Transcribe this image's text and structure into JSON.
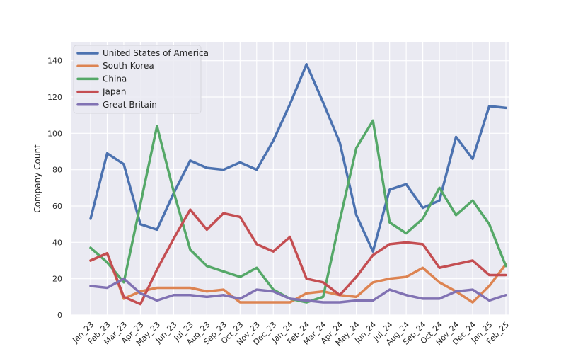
{
  "chart_data": {
    "type": "line",
    "title": "",
    "xlabel": "",
    "ylabel": "Company Count",
    "ylim": [
      0,
      150
    ],
    "yticks": [
      0,
      20,
      40,
      60,
      80,
      100,
      120,
      140
    ],
    "grid": true,
    "legend_position": "top-left",
    "categories": [
      "Jan_23",
      "Feb_23",
      "Mar_23",
      "Apr_23",
      "May_23",
      "Jun_23",
      "Jul_23",
      "Aug_23",
      "Sep_23",
      "Oct_23",
      "Nov_23",
      "Dec_23",
      "Jan_24",
      "Feb_24",
      "Mar_24",
      "Apr_24",
      "May_24",
      "Jun_24",
      "Jul_24",
      "Aug_24",
      "Sep_24",
      "Oct_24",
      "Nov_24",
      "Dec_24",
      "Jan_25",
      "Feb_25"
    ],
    "series": [
      {
        "name": "United States of America",
        "color": "#4c72b0",
        "values": [
          53,
          89,
          83,
          50,
          47,
          67,
          85,
          81,
          80,
          84,
          80,
          96,
          116,
          138,
          117,
          95,
          55,
          35,
          69,
          72,
          59,
          63,
          98,
          86,
          115,
          114
        ]
      },
      {
        "name": "South Korea",
        "color": "#dd8452",
        "values": [
          30,
          34,
          9,
          13,
          15,
          15,
          15,
          13,
          14,
          7,
          7,
          7,
          7,
          12,
          13,
          11,
          10,
          18,
          20,
          21,
          26,
          18,
          13,
          7,
          16,
          28
        ]
      },
      {
        "name": "China",
        "color": "#55a868",
        "values": [
          37,
          29,
          18,
          61,
          104,
          68,
          36,
          27,
          24,
          21,
          26,
          14,
          9,
          7,
          10,
          52,
          92,
          107,
          51,
          45,
          53,
          70,
          55,
          63,
          50,
          27
        ]
      },
      {
        "name": "Japan",
        "color": "#c44e52",
        "values": [
          30,
          34,
          10,
          6,
          25,
          42,
          58,
          47,
          56,
          54,
          39,
          35,
          43,
          20,
          18,
          11,
          21,
          33,
          39,
          40,
          39,
          26,
          28,
          30,
          22,
          22
        ]
      },
      {
        "name": "Great-Britain",
        "color": "#8172b3",
        "values": [
          16,
          15,
          20,
          12,
          8,
          11,
          11,
          10,
          11,
          9,
          14,
          13,
          9,
          8,
          7,
          7,
          8,
          8,
          14,
          11,
          9,
          9,
          13,
          14,
          8,
          11
        ]
      }
    ]
  }
}
